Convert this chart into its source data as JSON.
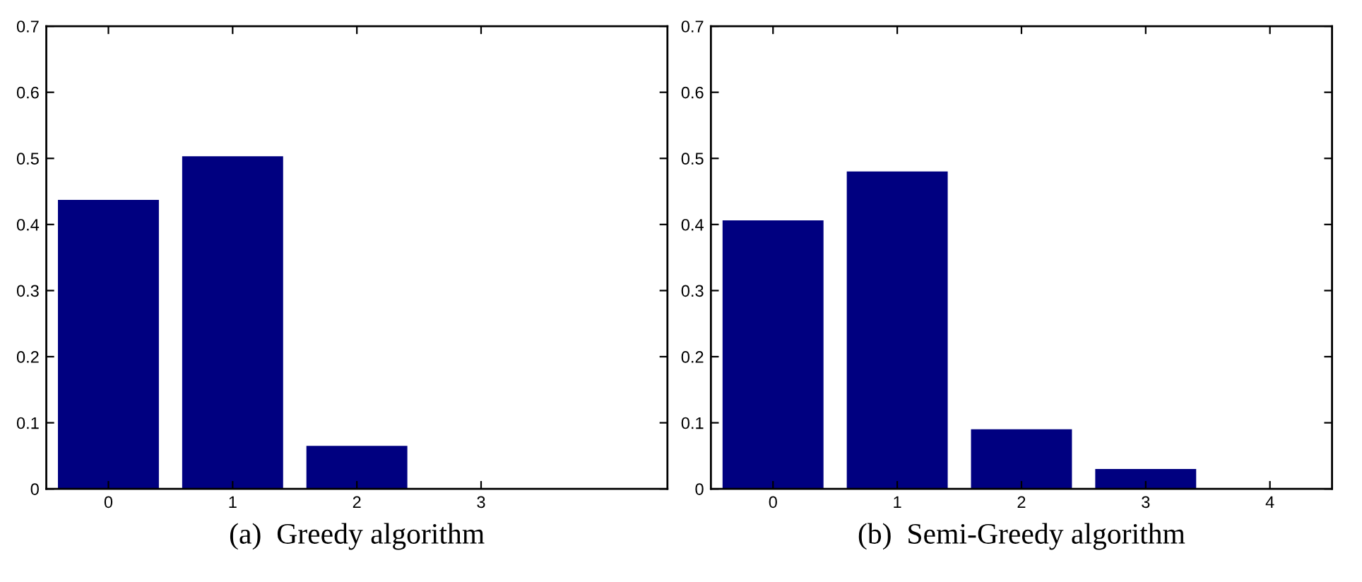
{
  "chart_data": [
    {
      "type": "bar",
      "xlabel": "(a)  Greedy algorithm",
      "x": [
        0,
        1,
        2,
        3
      ],
      "values": [
        0.436,
        0.502,
        0.064,
        0
      ],
      "color": "#000080",
      "xlim": [
        -0.5,
        4.5
      ],
      "xticks": [
        0,
        1,
        2,
        3
      ],
      "ylim": [
        0,
        0.7
      ],
      "yticks": [
        0,
        0.1,
        0.2,
        0.3,
        0.4,
        0.5,
        0.6,
        0.7
      ]
    },
    {
      "type": "bar",
      "xlabel": "(b)  Semi-Greedy algorithm",
      "x": [
        0,
        1,
        2,
        3,
        4
      ],
      "values": [
        0.405,
        0.479,
        0.089,
        0.029,
        0
      ],
      "color": "#000080",
      "xlim": [
        -0.5,
        4.5
      ],
      "xticks": [
        0,
        1,
        2,
        3,
        4
      ],
      "ylim": [
        0,
        0.7
      ],
      "yticks": [
        0,
        0.1,
        0.2,
        0.3,
        0.4,
        0.5,
        0.6,
        0.7
      ]
    }
  ]
}
